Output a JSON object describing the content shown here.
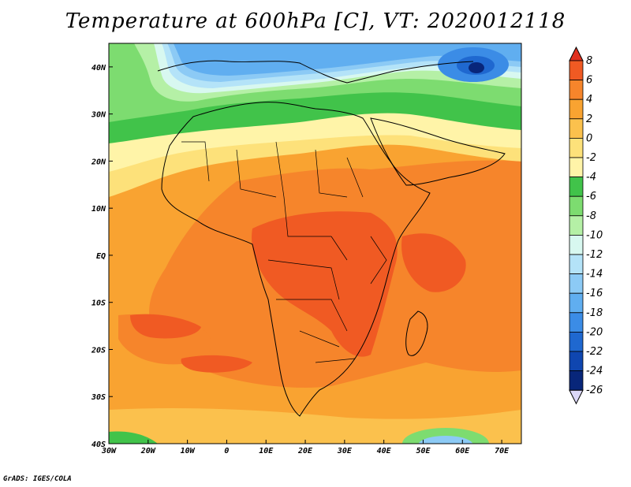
{
  "title": "Temperature at 600hPa [C], VT: 2020012118",
  "credit": "GrADS: IGES/COLA",
  "map": {
    "lon_range": [
      -30,
      75
    ],
    "lat_range": [
      -40,
      45
    ],
    "x_ticks": [
      "30W",
      "20W",
      "10W",
      "0",
      "10E",
      "20E",
      "30E",
      "40E",
      "50E",
      "60E",
      "70E"
    ],
    "y_ticks": [
      "40N",
      "30N",
      "20N",
      "10N",
      "EQ",
      "10S",
      "20S",
      "30S",
      "40S"
    ],
    "features": [
      "cold-core-north-africa-mediterranean",
      "cold-low-iran",
      "warm-core-congo-basin",
      "warm-southern-africa",
      "cold-southern-ocean-edge"
    ]
  },
  "colorbar": {
    "levels": [
      "8",
      "6",
      "4",
      "2",
      "0",
      "-2",
      "-4",
      "-6",
      "-8",
      "-10",
      "-12",
      "-14",
      "-16",
      "-18",
      "-20",
      "-22",
      "-24",
      "-26"
    ],
    "colors": [
      "#e0301e",
      "#f05a23",
      "#f6852b",
      "#f9a331",
      "#fbc14d",
      "#fde17a",
      "#fff4a8",
      "#41c34a",
      "#7ddc70",
      "#b5f0a6",
      "#d8f8f0",
      "#b4e3f8",
      "#8ccaf5",
      "#60aef0",
      "#3b8ce6",
      "#1f68d0",
      "#0f46b0",
      "#08267a",
      "#dcd8f8"
    ]
  }
}
